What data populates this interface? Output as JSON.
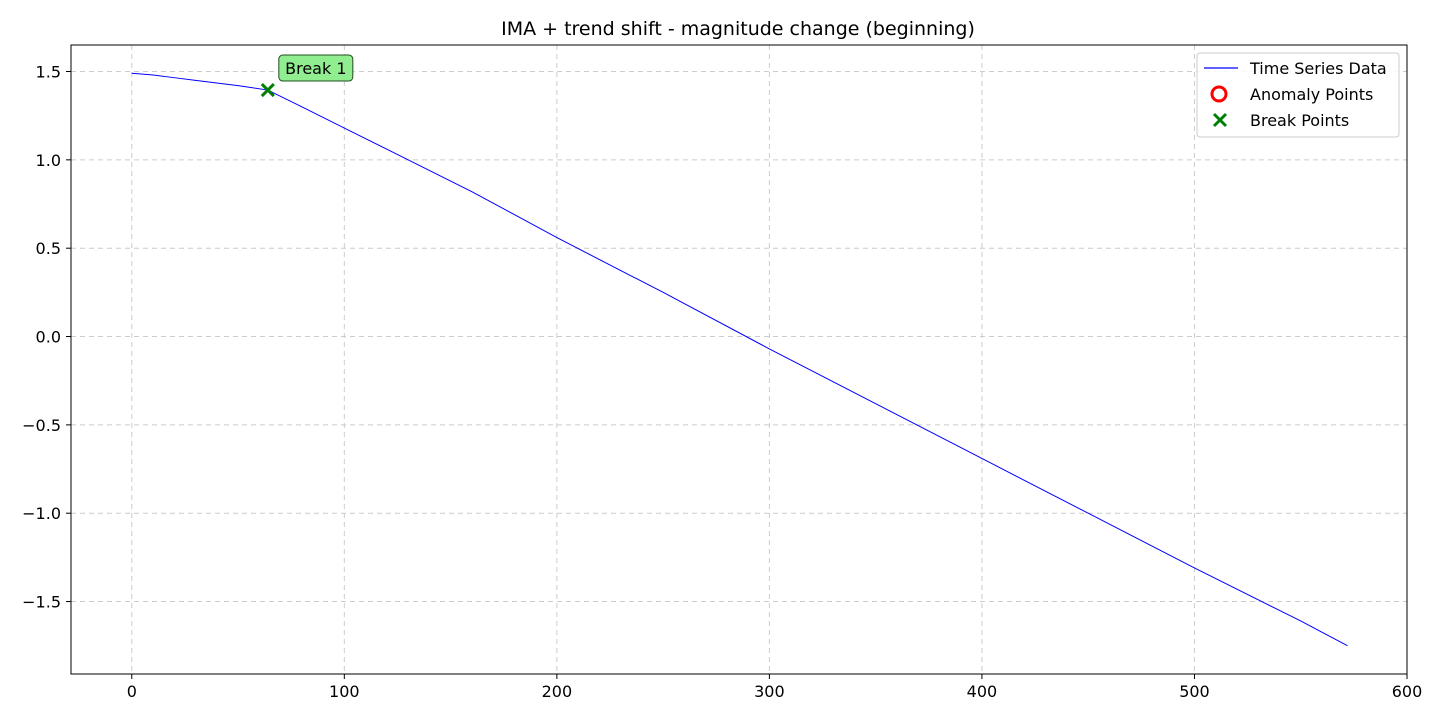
{
  "chart_data": {
    "type": "line",
    "title": "IMA + trend shift - magnitude change (beginning)",
    "xlabel": "",
    "ylabel": "",
    "xlim": [
      -28.6,
      600
    ],
    "ylim": [
      -1.91,
      1.65
    ],
    "x_ticks": [
      0,
      100,
      200,
      300,
      400,
      500,
      600
    ],
    "x_tick_labels": [
      "0",
      "100",
      "200",
      "300",
      "400",
      "500",
      "600"
    ],
    "y_ticks": [
      1.5,
      1.0,
      0.5,
      0.0,
      -0.5,
      -1.0,
      -1.5
    ],
    "y_tick_labels": [
      "1.5",
      "1.0",
      "0.5",
      "0.0",
      "−0.5",
      "−1.0",
      "−1.5"
    ],
    "grid": true,
    "legend_position": "top-right",
    "legend": [
      {
        "label": "Time Series Data",
        "kind": "line",
        "color": "#0000ff"
      },
      {
        "label": "Anomaly Points",
        "kind": "circle",
        "color": "#ff0000"
      },
      {
        "label": "Break Points",
        "kind": "x",
        "color": "#008000"
      }
    ],
    "series": [
      {
        "name": "Time Series Data",
        "color": "#0000ff",
        "x": [
          0,
          10,
          20,
          30,
          40,
          50,
          64,
          80,
          100,
          120,
          140,
          160,
          180,
          200,
          250,
          300,
          350,
          400,
          450,
          500,
          550,
          572
        ],
        "y": [
          1.49,
          1.48,
          1.465,
          1.45,
          1.435,
          1.42,
          1.395,
          1.3,
          1.18,
          1.06,
          0.94,
          0.82,
          0.69,
          0.56,
          0.25,
          -0.07,
          -0.38,
          -0.69,
          -1.0,
          -1.31,
          -1.61,
          -1.75
        ]
      }
    ],
    "anomaly_points": [],
    "break_points": [
      {
        "x": 64,
        "y": 1.395
      }
    ],
    "annotations": [
      {
        "text": "Break 1",
        "x": 64,
        "y": 1.395,
        "color": "#90ee90"
      }
    ]
  }
}
